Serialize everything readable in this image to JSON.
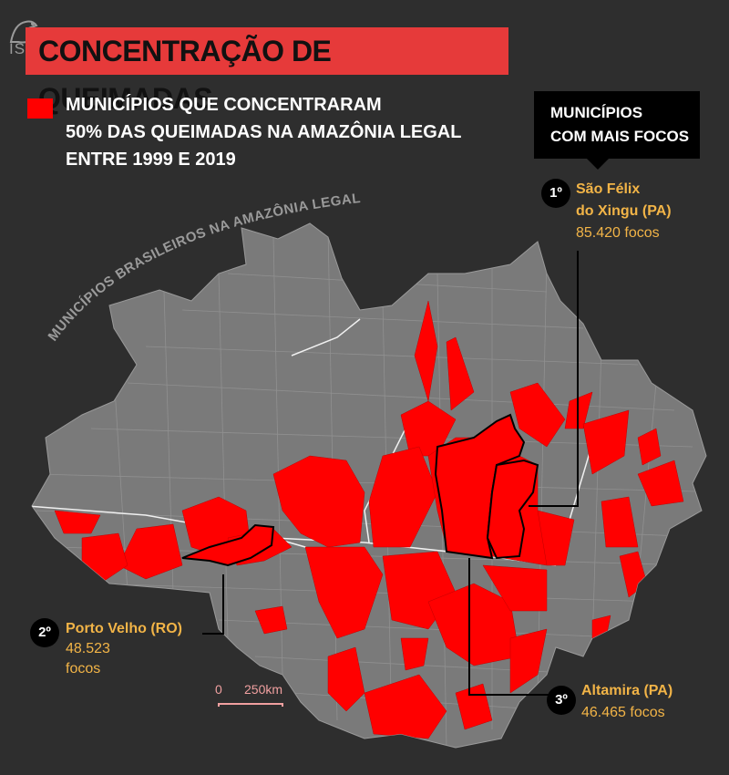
{
  "logo": {
    "text": "ISA"
  },
  "title": "CONCENTRAÇÃO DE QUEIMADAS",
  "legend": {
    "lines": [
      "MUNICÍPIOS QUE CONCENTRARAM",
      "50% DAS QUEIMADAS NA AMAZÔNIA LEGAL",
      "ENTRE 1999 E 2019"
    ],
    "color": "#ff0000"
  },
  "map_label": "MUNICÍPIOS BRASILEIROS NA AMAZÔNIA LEGAL",
  "top_box": {
    "line1": "MUNICÍPIOS",
    "line2": "COM MAIS FOCOS"
  },
  "rankings": [
    {
      "rank": "1º",
      "name_line1": "São Félix",
      "name_line2": "do Xingu (PA)",
      "value": "85.420 focos"
    },
    {
      "rank": "2º",
      "name_line1": "Porto Velho (RO)",
      "value_line1": "48.523",
      "value_line2": "focos"
    },
    {
      "rank": "3º",
      "name_line1": "Altamira (PA)",
      "value": "46.465 focos"
    }
  ],
  "scale": {
    "zero": "0",
    "distance": "250km"
  },
  "colors": {
    "background": "#2e2e2e",
    "land": "#7a7a7a",
    "highlight": "#ff0000",
    "accent": "#e63a3a",
    "label": "#f2b447"
  }
}
